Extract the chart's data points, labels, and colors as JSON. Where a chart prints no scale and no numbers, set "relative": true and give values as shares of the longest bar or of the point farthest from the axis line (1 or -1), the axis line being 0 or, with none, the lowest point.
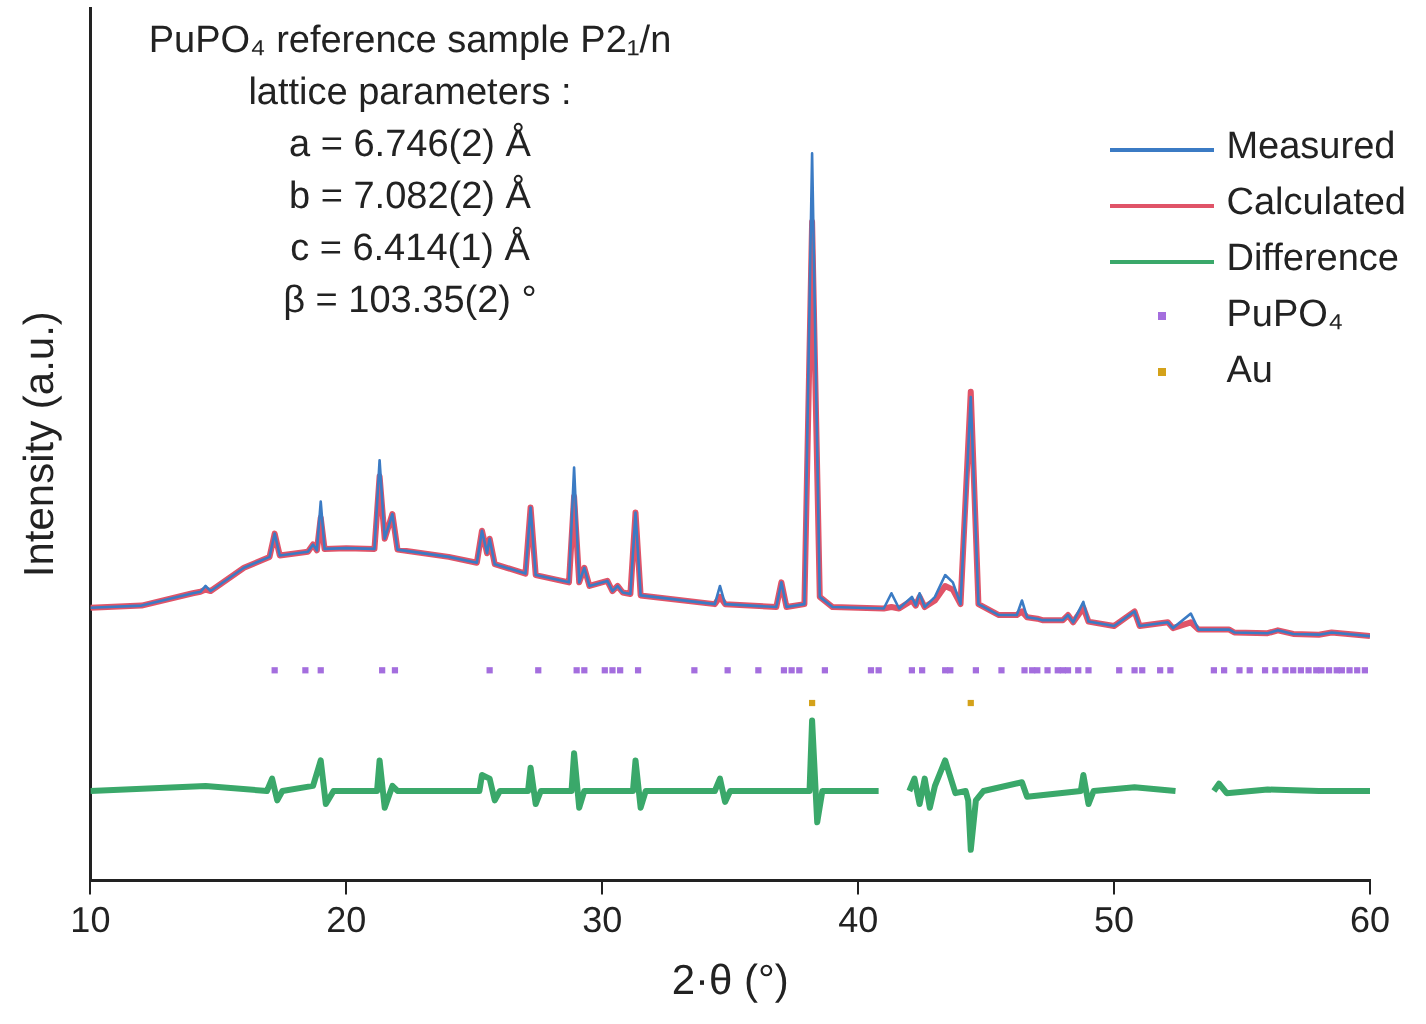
{
  "chart_data": {
    "type": "line",
    "relative": true,
    "xlabel": "2·θ (°)",
    "ylabel": "Intensity (a.u.)",
    "xlim": [
      10,
      60
    ],
    "xticks": [
      10,
      20,
      30,
      40,
      50,
      60
    ],
    "grid": false,
    "legend": "top right",
    "annotations": [
      "PuPO₄ reference sample P2₁/n",
      "lattice parameters :",
      "a = 6.746(2) Å",
      "b = 7.082(2) Å",
      "c = 6.414(1) Å",
      "β = 103.35(2) °"
    ],
    "series": [
      {
        "name": "Measured",
        "color": "#3b7bc4",
        "x": [
          10,
          12,
          14,
          14.3,
          14.5,
          14.7,
          16,
          17,
          17.2,
          17.4,
          18.5,
          18.7,
          18.85,
          19.0,
          19.15,
          20,
          21.1,
          21.3,
          21.5,
          21.8,
          22,
          24,
          25.1,
          25.3,
          25.5,
          25.6,
          25.8,
          27.0,
          27.2,
          27.4,
          28.7,
          28.9,
          29.1,
          29.3,
          29.5,
          30.2,
          30.4,
          30.6,
          30.8,
          31.1,
          31.3,
          31.5,
          34.4,
          34.6,
          34.8,
          36.8,
          37.0,
          37.2,
          37.9,
          38.2,
          38.5,
          39,
          40,
          41.0,
          41.3,
          41.6,
          42.1,
          42.25,
          42.4,
          42.6,
          43.0,
          43.4,
          43.7,
          44.0,
          44.4,
          44.7,
          45.5,
          46.2,
          46.4,
          46.6,
          47.0,
          47.2,
          48.0,
          48.2,
          48.4,
          48.8,
          49.0,
          50,
          50.8,
          51.0,
          52.1,
          52.3,
          53.0,
          53.3,
          54.5,
          54.7,
          56,
          56.4,
          57,
          58,
          58.5,
          60
        ],
        "values": [
          0.375,
          0.378,
          0.395,
          0.397,
          0.405,
          0.398,
          0.43,
          0.445,
          0.477,
          0.447,
          0.452,
          0.462,
          0.454,
          0.521,
          0.456,
          0.457,
          0.456,
          0.578,
          0.47,
          0.504,
          0.455,
          0.445,
          0.437,
          0.481,
          0.45,
          0.47,
          0.435,
          0.422,
          0.513,
          0.42,
          0.41,
          0.568,
          0.41,
          0.43,
          0.405,
          0.412,
          0.398,
          0.405,
          0.396,
          0.394,
          0.506,
          0.392,
          0.38,
          0.405,
          0.38,
          0.376,
          0.41,
          0.376,
          0.38,
          1.0,
          0.39,
          0.376,
          0.375,
          0.374,
          0.395,
          0.374,
          0.39,
          0.378,
          0.395,
          0.376,
          0.39,
          0.42,
          0.41,
          0.38,
          0.665,
          0.38,
          0.365,
          0.365,
          0.385,
          0.362,
          0.36,
          0.358,
          0.358,
          0.365,
          0.355,
          0.383,
          0.356,
          0.35,
          0.37,
          0.35,
          0.355,
          0.347,
          0.367,
          0.345,
          0.345,
          0.341,
          0.34,
          0.344,
          0.339,
          0.338,
          0.341,
          0.336
        ]
      },
      {
        "name": "Calculated",
        "color": "#e05468",
        "x": [
          10,
          12,
          14,
          14.3,
          14.5,
          14.7,
          16,
          17,
          17.2,
          17.4,
          18.5,
          18.7,
          18.85,
          19.0,
          19.15,
          20,
          21.1,
          21.3,
          21.5,
          21.8,
          22,
          24,
          25.1,
          25.3,
          25.5,
          25.6,
          25.8,
          27.0,
          27.2,
          27.4,
          28.7,
          28.9,
          29.1,
          29.3,
          29.5,
          30.2,
          30.4,
          30.6,
          30.8,
          31.1,
          31.3,
          31.5,
          34.4,
          34.6,
          34.8,
          36.8,
          37.0,
          37.2,
          37.9,
          38.2,
          38.5,
          39,
          40,
          41.0,
          41.3,
          41.6,
          42.1,
          42.25,
          42.4,
          42.6,
          43.0,
          43.4,
          43.7,
          44.0,
          44.4,
          44.7,
          45.5,
          46.2,
          46.4,
          46.6,
          47.0,
          47.2,
          48.0,
          48.2,
          48.4,
          48.8,
          49.0,
          50,
          50.8,
          51.0,
          52.1,
          52.3,
          53.0,
          53.3,
          54.5,
          54.7,
          56,
          56.4,
          57,
          58,
          58.5,
          60
        ],
        "values": [
          0.375,
          0.378,
          0.395,
          0.397,
          0.4,
          0.398,
          0.43,
          0.445,
          0.477,
          0.447,
          0.452,
          0.462,
          0.454,
          0.499,
          0.456,
          0.457,
          0.456,
          0.556,
          0.47,
          0.504,
          0.455,
          0.445,
          0.437,
          0.481,
          0.45,
          0.47,
          0.435,
          0.422,
          0.513,
          0.42,
          0.41,
          0.528,
          0.41,
          0.43,
          0.405,
          0.412,
          0.398,
          0.405,
          0.396,
          0.394,
          0.506,
          0.392,
          0.38,
          0.39,
          0.38,
          0.376,
          0.41,
          0.376,
          0.38,
          0.906,
          0.39,
          0.376,
          0.375,
          0.374,
          0.376,
          0.374,
          0.385,
          0.378,
          0.39,
          0.376,
          0.385,
          0.405,
          0.4,
          0.38,
          0.672,
          0.38,
          0.365,
          0.365,
          0.37,
          0.362,
          0.36,
          0.358,
          0.358,
          0.365,
          0.355,
          0.375,
          0.356,
          0.35,
          0.37,
          0.35,
          0.355,
          0.347,
          0.355,
          0.345,
          0.345,
          0.341,
          0.34,
          0.344,
          0.339,
          0.338,
          0.341,
          0.336
        ]
      },
      {
        "name": "Difference",
        "color": "#3aa86a",
        "x": [
          10,
          14.5,
          16.9,
          17.1,
          17.3,
          17.5,
          18.7,
          19.0,
          19.2,
          19.5,
          21.2,
          21.3,
          21.5,
          21.8,
          22,
          25.2,
          25.3,
          25.6,
          25.8,
          26,
          27.1,
          27.2,
          27.4,
          27.6,
          28.8,
          28.9,
          29.1,
          29.3,
          31.2,
          31.3,
          31.5,
          31.7,
          34.4,
          34.6,
          34.8,
          35,
          37,
          38.1,
          38.2,
          38.4,
          38.6,
          40.8,
          41.4,
          42.0,
          42.2,
          42.4,
          42.6,
          42.8,
          43.0,
          43.4,
          43.8,
          44.2,
          44.3,
          44.4,
          44.6,
          44.9,
          46.4,
          46.6,
          48.7,
          48.8,
          49.0,
          49.2,
          50.8,
          52.4,
          53.1,
          53.9,
          54.1,
          54.4,
          56,
          58,
          60
        ],
        "values": [
          0.123,
          0.13,
          0.123,
          0.14,
          0.11,
          0.123,
          0.13,
          0.165,
          0.105,
          0.123,
          0.123,
          0.165,
          0.1,
          0.13,
          0.123,
          0.123,
          0.145,
          0.14,
          0.11,
          0.123,
          0.123,
          0.155,
          0.105,
          0.123,
          0.123,
          0.175,
          0.1,
          0.123,
          0.123,
          0.165,
          0.1,
          0.123,
          0.123,
          0.14,
          0.108,
          0.123,
          0.123,
          0.123,
          0.22,
          0.08,
          0.123,
          0.123,
          null,
          0.123,
          0.14,
          0.105,
          0.14,
          0.1,
          0.13,
          0.165,
          0.12,
          0.123,
          0.11,
          0.042,
          0.11,
          0.123,
          0.135,
          0.115,
          0.123,
          0.145,
          0.105,
          0.123,
          0.128,
          0.123,
          null,
          0.123,
          0.133,
          0.12,
          0.125,
          0.123,
          0.123
        ]
      },
      {
        "name": "PuPO₄",
        "type": "scatter",
        "marker": "square",
        "color": "#a46ede",
        "x": [
          17.2,
          18.4,
          19.0,
          21.4,
          21.9,
          25.6,
          27.5,
          29.0,
          29.3,
          30.1,
          30.4,
          30.7,
          31.4,
          33.6,
          34.9,
          36.1,
          37.1,
          37.4,
          37.7,
          38.7,
          40.5,
          40.8,
          42.1,
          42.5,
          43.4,
          43.6,
          44.6,
          45.6,
          46.5,
          46.8,
          47.0,
          47.4,
          47.8,
          48.0,
          48.2,
          48.6,
          49.0,
          50.2,
          50.8,
          51.1,
          51.8,
          52.2,
          53.9,
          54.3,
          54.9,
          55.3,
          55.9,
          56.3,
          56.7,
          57.0,
          57.3,
          57.6,
          57.9,
          58.1,
          58.4,
          58.7,
          58.9,
          59.2,
          59.5,
          59.8
        ],
        "values": [
          0.289,
          0.289,
          0.289,
          0.289,
          0.289,
          0.289,
          0.289,
          0.289,
          0.289,
          0.289,
          0.289,
          0.289,
          0.289,
          0.289,
          0.289,
          0.289,
          0.289,
          0.289,
          0.289,
          0.289,
          0.289,
          0.289,
          0.289,
          0.289,
          0.289,
          0.289,
          0.289,
          0.289,
          0.289,
          0.289,
          0.289,
          0.289,
          0.289,
          0.289,
          0.289,
          0.289,
          0.289,
          0.289,
          0.289,
          0.289,
          0.289,
          0.289,
          0.289,
          0.289,
          0.289,
          0.289,
          0.289,
          0.289,
          0.289,
          0.289,
          0.289,
          0.289,
          0.289,
          0.289,
          0.289,
          0.289,
          0.289,
          0.289,
          0.289,
          0.289
        ]
      },
      {
        "name": "Au",
        "type": "scatter",
        "marker": "square",
        "color": "#d4a21a",
        "x": [
          38.2,
          44.4
        ],
        "values": [
          0.244,
          0.244
        ]
      }
    ]
  }
}
